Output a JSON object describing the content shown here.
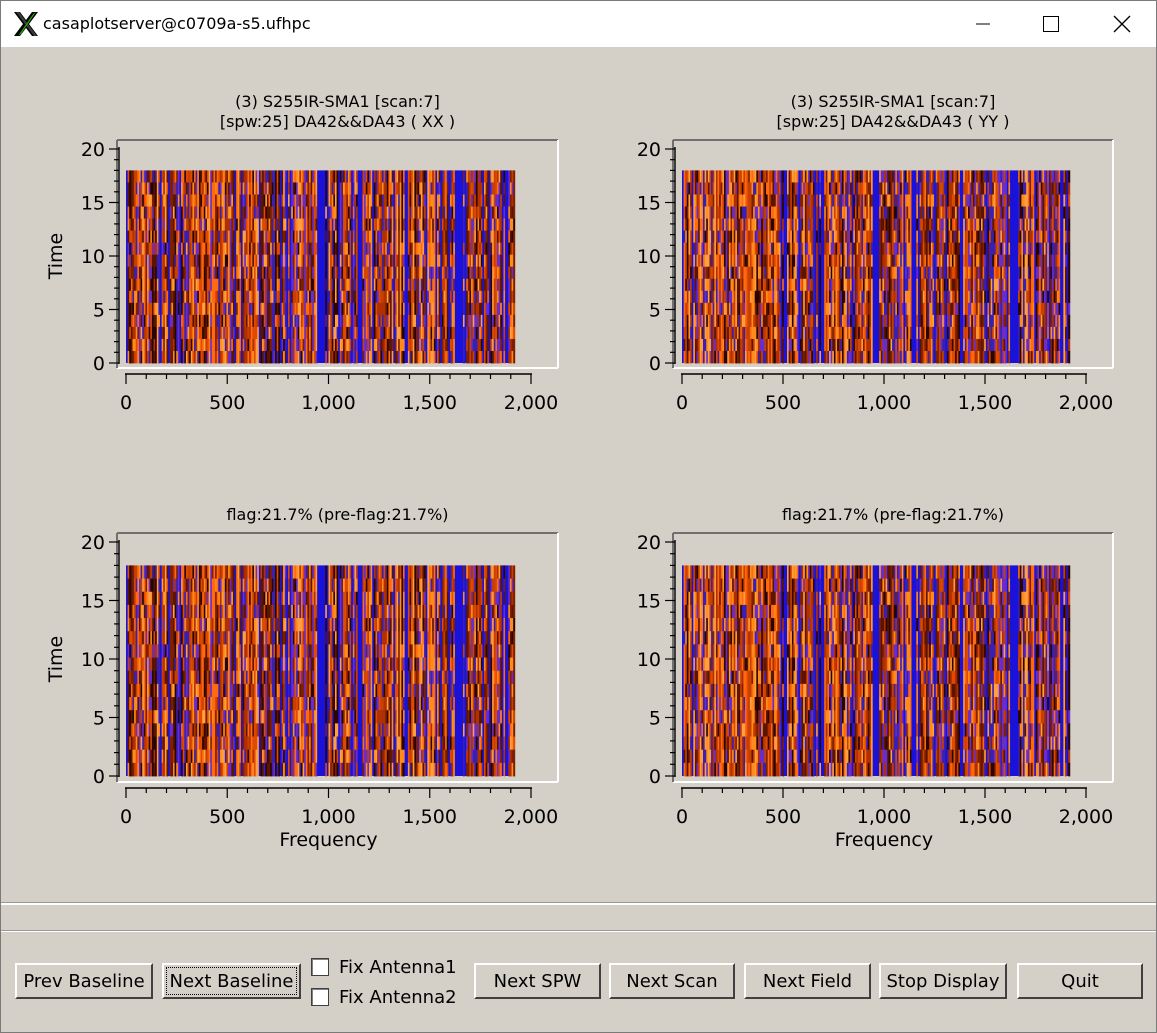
{
  "window": {
    "title": "casaplotserver@c0709a-s5.ufhpc",
    "controls": {
      "minimize": "minimize-icon",
      "maximize": "maximize-icon",
      "close": "close-icon"
    }
  },
  "plots": [
    {
      "id": "top-left",
      "title_lines": [
        "(3) S255IR-SMA1  [scan:7]",
        "[spw:25] DA42&&DA43  ( XX )"
      ],
      "xlabel": "",
      "ylabel": "Time"
    },
    {
      "id": "top-right",
      "title_lines": [
        "(3) S255IR-SMA1  [scan:7]",
        "[spw:25] DA42&&DA43  ( YY )"
      ],
      "xlabel": "",
      "ylabel": ""
    },
    {
      "id": "bottom-left",
      "title_lines": [
        "flag:21.7% (pre-flag:21.7%)"
      ],
      "xlabel": "Frequency",
      "ylabel": "Time"
    },
    {
      "id": "bottom-right",
      "title_lines": [
        "flag:21.7% (pre-flag:21.7%)"
      ],
      "xlabel": "Frequency",
      "ylabel": ""
    }
  ],
  "chart_data": {
    "type": "heatmap",
    "x_ticks": [
      "0",
      "500",
      "1,000",
      "1,500",
      "2,000"
    ],
    "y_ticks": [
      "0",
      "5",
      "10",
      "15",
      "20"
    ],
    "xlim": [
      0,
      2000
    ],
    "ylim": [
      0,
      20
    ],
    "data_x_range": [
      0,
      1920
    ],
    "data_y_range": [
      0,
      18
    ],
    "flagged_channel_bands": [
      [
        0,
        8
      ],
      [
        948,
        972
      ],
      [
        1625,
        1660
      ],
      [
        1870,
        1885
      ],
      [
        1148,
        1158
      ],
      [
        1375,
        1388
      ]
    ],
    "colors": {
      "flagged": "#1a12d8",
      "palette": [
        "#ff6a10",
        "#e04a00",
        "#ff8c1a",
        "#b03000",
        "#5a1400",
        "#2a0500",
        "#ff9f3f",
        "#c84000",
        "#7e2000",
        "#6b2dc8",
        "#3a20b0"
      ]
    }
  },
  "buttons": {
    "prev_baseline": "Prev Baseline",
    "next_baseline": "Next Baseline",
    "fix_antenna1": "Fix Antenna1",
    "fix_antenna2": "Fix Antenna2",
    "next_spw": "Next SPW",
    "next_scan": "Next Scan",
    "next_field": "Next Field",
    "stop_display": "Stop Display",
    "quit": "Quit"
  },
  "checkboxes": {
    "fix_antenna1": false,
    "fix_antenna2": false
  }
}
